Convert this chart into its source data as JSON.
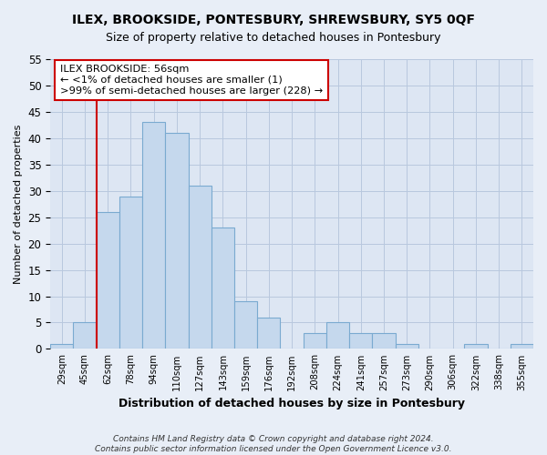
{
  "title": "ILEX, BROOKSIDE, PONTESBURY, SHREWSBURY, SY5 0QF",
  "subtitle": "Size of property relative to detached houses in Pontesbury",
  "xlabel": "Distribution of detached houses by size in Pontesbury",
  "ylabel": "Number of detached properties",
  "bin_labels": [
    "29sqm",
    "45sqm",
    "62sqm",
    "78sqm",
    "94sqm",
    "110sqm",
    "127sqm",
    "143sqm",
    "159sqm",
    "176sqm",
    "192sqm",
    "208sqm",
    "224sqm",
    "241sqm",
    "257sqm",
    "273sqm",
    "290sqm",
    "306sqm",
    "322sqm",
    "338sqm",
    "355sqm"
  ],
  "bar_heights": [
    1,
    5,
    26,
    29,
    43,
    41,
    31,
    23,
    9,
    6,
    0,
    3,
    5,
    3,
    3,
    1,
    0,
    0,
    1,
    0,
    1
  ],
  "bar_color": "#c5d8ed",
  "bar_edge_color": "#7aaad0",
  "vline_color": "#cc0000",
  "vline_x_index": 2,
  "ylim": [
    0,
    55
  ],
  "yticks": [
    0,
    5,
    10,
    15,
    20,
    25,
    30,
    35,
    40,
    45,
    50,
    55
  ],
  "annotation_title": "ILEX BROOKSIDE: 56sqm",
  "annotation_line1": "← <1% of detached houses are smaller (1)",
  "annotation_line2": ">99% of semi-detached houses are larger (228) →",
  "footer_line1": "Contains HM Land Registry data © Crown copyright and database right 2024.",
  "footer_line2": "Contains public sector information licensed under the Open Government Licence v3.0.",
  "bg_color": "#e8eef7",
  "plot_bg_color": "#dde6f3",
  "grid_color": "#b8c8de"
}
